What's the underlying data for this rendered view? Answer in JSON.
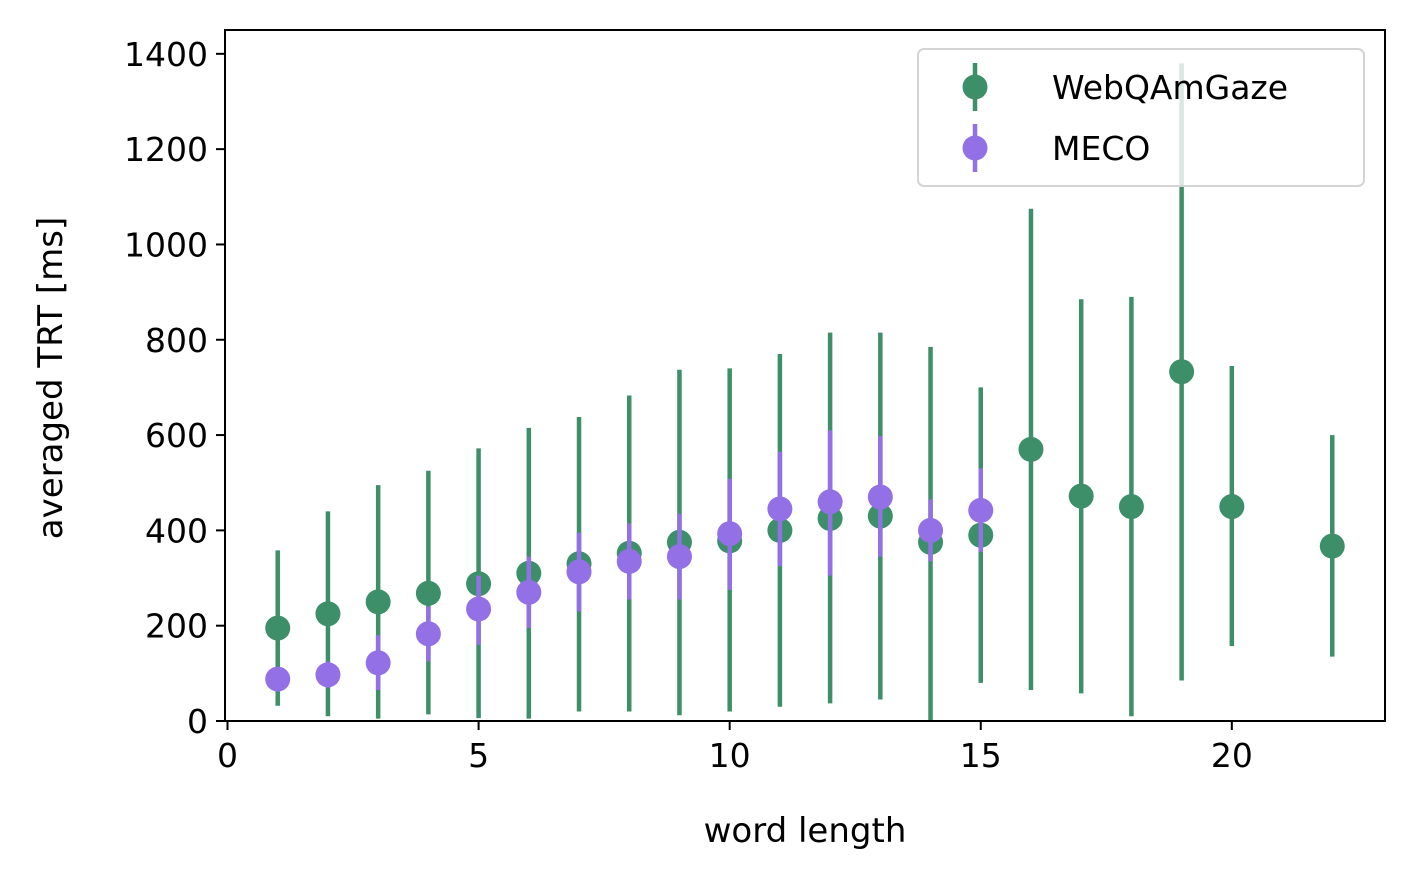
{
  "chart_data": {
    "type": "scatter",
    "title": "",
    "xlabel": "word length",
    "ylabel": "averaged TRT [ms]",
    "xlim": [
      -0.05,
      23.05
    ],
    "ylim": [
      0,
      1450
    ],
    "xticks": [
      0,
      5,
      10,
      15,
      20
    ],
    "xtick_labels": [
      "0",
      "5",
      "10",
      "15",
      "20"
    ],
    "yticks": [
      0,
      200,
      400,
      600,
      800,
      1000,
      1200,
      1400
    ],
    "ytick_labels": [
      "0",
      "200",
      "400",
      "600",
      "800",
      "1000",
      "1200",
      "1400"
    ],
    "grid": false,
    "legend_position": "upper right",
    "series": [
      {
        "name": "WebQAmGaze",
        "color": "#3d8f6a",
        "marker": "circle",
        "error_bars": true,
        "x": [
          1,
          2,
          3,
          4,
          5,
          6,
          7,
          8,
          9,
          10,
          11,
          12,
          13,
          14,
          15,
          16,
          17,
          18,
          19,
          20,
          22
        ],
        "y": [
          195,
          225,
          250,
          268,
          288,
          310,
          330,
          352,
          375,
          378,
          400,
          425,
          430,
          375,
          390,
          570,
          472,
          450,
          733,
          450,
          367
        ],
        "yerr_low": [
          32,
          10,
          5,
          14,
          6,
          5,
          20,
          20,
          12,
          20,
          30,
          37,
          45,
          0,
          80,
          65,
          58,
          10,
          85,
          157,
          135
        ],
        "yerr_high": [
          358,
          440,
          495,
          525,
          572,
          615,
          638,
          683,
          737,
          740,
          770,
          815,
          815,
          785,
          700,
          1075,
          885,
          890,
          1380,
          745,
          600
        ]
      },
      {
        "name": "MECO",
        "color": "#9370e5",
        "marker": "circle",
        "error_bars": true,
        "x": [
          1,
          2,
          3,
          4,
          5,
          6,
          7,
          8,
          9,
          10,
          11,
          12,
          13,
          14,
          15
        ],
        "y": [
          88,
          97,
          122,
          183,
          235,
          270,
          313,
          335,
          345,
          393,
          445,
          460,
          470,
          400,
          442
        ],
        "yerr_low": [
          65,
          70,
          65,
          125,
          160,
          195,
          230,
          255,
          255,
          275,
          325,
          305,
          345,
          335,
          355
        ],
        "yerr_high": [
          110,
          125,
          180,
          240,
          305,
          345,
          395,
          415,
          435,
          508,
          565,
          610,
          598,
          465,
          530
        ]
      }
    ]
  }
}
